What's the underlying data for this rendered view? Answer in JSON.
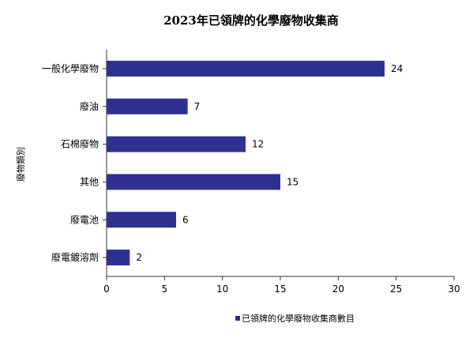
{
  "chart_data": {
    "type": "bar",
    "orientation": "horizontal",
    "title": "2023年已領牌的化學廢物收集商",
    "xlabel": "",
    "ylabel": "廢物類別",
    "categories": [
      "一般化學廢物",
      "廢油",
      "石棉廢物",
      "其他",
      "廢電池",
      "廢電鍍溶劑"
    ],
    "series": [
      {
        "name": "已領牌的化學廢物收集商數目",
        "values": [
          24,
          7,
          12,
          15,
          6,
          2
        ]
      }
    ],
    "xlim": [
      0,
      30
    ],
    "xticks": [
      0,
      5,
      10,
      15,
      20,
      25,
      30
    ],
    "data_labels": true,
    "grid": false,
    "legend_position": "bottom",
    "bar_color": "#2e3192"
  }
}
